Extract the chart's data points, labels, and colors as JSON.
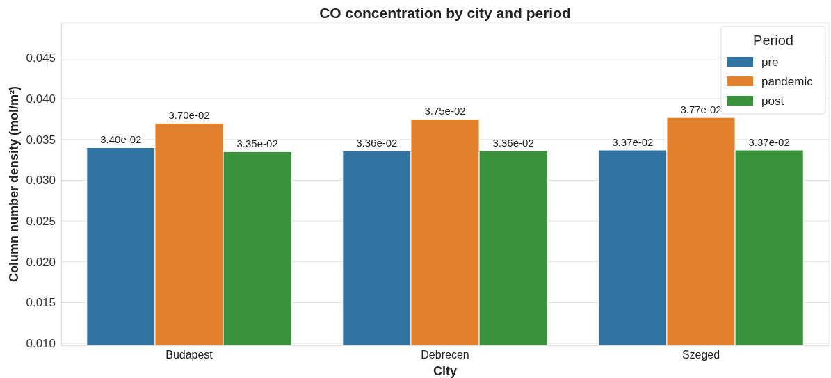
{
  "chart_data": {
    "type": "bar",
    "title": "CO concentration by city and period",
    "xlabel": "City",
    "ylabel": "Column number density (mol/m²)",
    "legend_title": "Period",
    "categories": [
      "Budapest",
      "Debrecen",
      "Szeged"
    ],
    "series": [
      {
        "name": "pre",
        "color": "#3274a1",
        "values": [
          0.034,
          0.0336,
          0.0337
        ],
        "value_labels": [
          "3.40e-02",
          "3.36e-02",
          "3.37e-02"
        ]
      },
      {
        "name": "pandemic",
        "color": "#e1812c",
        "values": [
          0.037,
          0.0375,
          0.0377
        ],
        "value_labels": [
          "3.70e-02",
          "3.75e-02",
          "3.77e-02"
        ]
      },
      {
        "name": "post",
        "color": "#3a923a",
        "values": [
          0.0335,
          0.0336,
          0.0337
        ],
        "value_labels": [
          "3.35e-02",
          "3.36e-02",
          "3.37e-02"
        ]
      }
    ],
    "ylim": [
      0.00975,
      0.0493
    ],
    "yticks": [
      "0.010",
      "0.015",
      "0.020",
      "0.025",
      "0.030",
      "0.035",
      "0.040",
      "0.045"
    ],
    "grid": "y",
    "legend": "top right"
  }
}
